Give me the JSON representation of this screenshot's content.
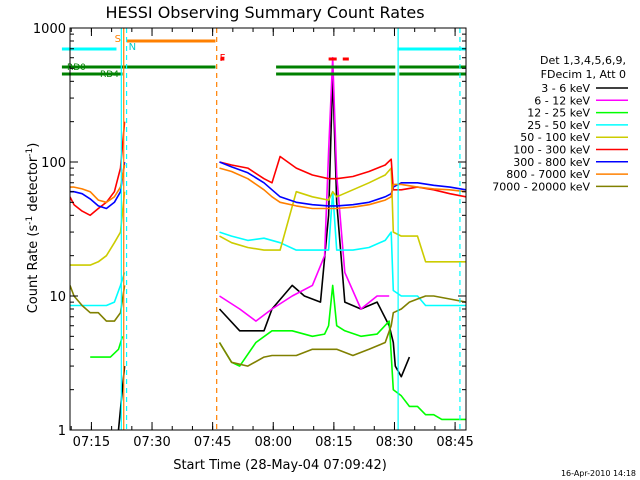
{
  "chart_data": {
    "type": "line",
    "title": "HESSI Observing Summary Count Rates",
    "xlabel": "Start Time (28-May-04 07:09:42)",
    "ylabel_main": "Count Rate (s",
    "ylabel_sup1": "-1",
    "ylabel_mid": " detector",
    "ylabel_sup2": "-1",
    "ylabel_end": ")",
    "yscale": "log",
    "ylim": [
      1,
      1000
    ],
    "xlim_minutes": [
      0,
      98
    ],
    "x_ticks": [
      {
        "label": "07:15",
        "m": 5.3
      },
      {
        "label": "07:30",
        "m": 20.3
      },
      {
        "label": "07:45",
        "m": 35.3
      },
      {
        "label": "08:00",
        "m": 50.3
      },
      {
        "label": "08:15",
        "m": 65.3
      },
      {
        "label": "08:30",
        "m": 80.3
      },
      {
        "label": "08:45",
        "m": 95.3
      }
    ],
    "y_ticks": [
      {
        "label": "1",
        "v": 1
      },
      {
        "label": "10",
        "v": 10
      },
      {
        "label": "100",
        "v": 100
      },
      {
        "label": "1000",
        "v": 1000
      }
    ],
    "legend": {
      "header1": "Det 1,3,4,5,6,9,",
      "header2": "FDecim 1, Att 0",
      "placement": "right"
    },
    "series": [
      {
        "name": "3 - 6 keV",
        "color": "#000000",
        "x": [
          0,
          8,
          12,
          13.5,
          14,
          36,
          37,
          42,
          48,
          50,
          55,
          58,
          62,
          64,
          65,
          66,
          68,
          72,
          76,
          79,
          80,
          80.5,
          82,
          84,
          86,
          98
        ],
        "y": [
          null,
          null,
          1.0,
          3,
          null,
          null,
          8,
          5.5,
          5.5,
          8,
          12,
          10,
          9,
          40,
          450,
          50,
          9,
          8,
          9,
          6,
          4.5,
          3,
          2.5,
          3.5,
          null,
          null
        ]
      },
      {
        "name": "6 - 12 keV",
        "color": "#ff00ff",
        "x": [
          0,
          13,
          14,
          36,
          37,
          42,
          46,
          50,
          55,
          60,
          63,
          64,
          65,
          66,
          68,
          72,
          76,
          79,
          80,
          98
        ],
        "y": [
          null,
          null,
          null,
          null,
          10,
          8,
          6.5,
          8,
          10,
          12,
          20,
          120,
          600,
          80,
          15,
          8,
          10,
          10,
          null,
          null
        ]
      },
      {
        "name": "12 - 25 keV",
        "color": "#00ff00",
        "x": [
          0,
          4,
          5,
          8,
          10,
          12,
          13,
          14,
          36,
          37,
          40,
          42,
          46,
          50,
          55,
          60,
          63,
          64,
          65,
          66,
          68,
          72,
          76,
          79,
          80,
          82,
          84,
          86,
          88,
          90,
          92,
          94,
          96,
          98
        ],
        "y": [
          null,
          null,
          3.5,
          3.5,
          3.5,
          4,
          5,
          null,
          null,
          4.5,
          3.2,
          3.0,
          4.5,
          5.5,
          5.5,
          5.0,
          5.2,
          6,
          12,
          6,
          5.5,
          5.0,
          5.2,
          6.5,
          2.0,
          1.8,
          1.5,
          1.5,
          1.3,
          1.3,
          1.2,
          1.2,
          1.2,
          1.2
        ]
      },
      {
        "name": "25 - 50 keV",
        "color": "#00ffff",
        "x": [
          0,
          1,
          3,
          6,
          9,
          11,
          12.5,
          13.5,
          14,
          36,
          37,
          40,
          44,
          48,
          52,
          56,
          60,
          64,
          65,
          66,
          70,
          74,
          78,
          79.5,
          80,
          82,
          86,
          88,
          92,
          95,
          98
        ],
        "y": [
          8.5,
          8.5,
          8.5,
          8.5,
          8.5,
          9,
          12,
          15,
          null,
          null,
          30,
          28,
          26,
          27,
          25,
          22,
          22,
          22,
          60,
          22,
          22,
          23,
          26,
          30,
          11,
          10,
          10,
          8.5,
          8.5,
          8.5,
          8.5
        ]
      },
      {
        "name": "50 - 100 keV",
        "color": "#cccc00",
        "x": [
          0,
          1,
          3,
          5,
          7,
          9,
          11,
          12.5,
          13.5,
          14,
          36,
          37,
          40,
          44,
          48,
          52,
          56,
          60,
          64,
          65,
          66,
          70,
          74,
          78,
          79.5,
          80,
          82,
          86,
          88,
          92,
          96,
          98
        ],
        "y": [
          17,
          17,
          17,
          17,
          18,
          20,
          25,
          30,
          60,
          null,
          null,
          28,
          25,
          23,
          22,
          22,
          60,
          55,
          52,
          60,
          55,
          62,
          70,
          80,
          90,
          30,
          28,
          28,
          18,
          18,
          18,
          18
        ]
      },
      {
        "name": "100 - 300 keV",
        "color": "#ff0000",
        "x": [
          0,
          1,
          3,
          5,
          7,
          9,
          11,
          12.5,
          13.5,
          14,
          36,
          37,
          40,
          44,
          48,
          50,
          52,
          56,
          60,
          64,
          66,
          70,
          74,
          78,
          79.5,
          80,
          82,
          86,
          90,
          94,
          98
        ],
        "y": [
          55,
          48,
          43,
          40,
          45,
          50,
          60,
          90,
          200,
          null,
          null,
          100,
          95,
          90,
          75,
          70,
          110,
          90,
          80,
          75,
          75,
          78,
          85,
          95,
          105,
          62,
          62,
          65,
          62,
          58,
          55
        ]
      },
      {
        "name": "300 - 800 keV",
        "color": "#0000ff",
        "x": [
          0,
          1,
          3,
          5,
          7,
          9,
          11,
          12.5,
          13.5,
          14,
          36,
          37,
          40,
          44,
          48,
          50,
          52,
          56,
          60,
          64,
          66,
          70,
          74,
          78,
          79.5,
          80,
          82,
          86,
          90,
          94,
          98
        ],
        "y": [
          60,
          60,
          58,
          53,
          47,
          45,
          50,
          60,
          100,
          null,
          null,
          100,
          92,
          83,
          70,
          62,
          55,
          50,
          48,
          47,
          47,
          48,
          50,
          55,
          58,
          65,
          70,
          70,
          67,
          65,
          62
        ]
      },
      {
        "name": "800 - 7000 keV",
        "color": "#ff8000",
        "x": [
          0,
          1,
          3,
          5,
          7,
          9,
          11,
          12.5,
          13.5,
          14,
          36,
          37,
          40,
          44,
          48,
          50,
          52,
          56,
          60,
          64,
          66,
          70,
          74,
          78,
          79.5,
          80,
          82,
          86,
          90,
          94,
          98
        ],
        "y": [
          65,
          65,
          63,
          60,
          52,
          50,
          55,
          65,
          95,
          null,
          null,
          90,
          85,
          75,
          62,
          55,
          50,
          47,
          45,
          45,
          45,
          46,
          48,
          52,
          55,
          68,
          68,
          65,
          63,
          62,
          60
        ]
      },
      {
        "name": "7000 - 20000 keV",
        "color": "#808000",
        "x": [
          0,
          1,
          3,
          5,
          7,
          9,
          11,
          12.5,
          13.5,
          14,
          36,
          37,
          40,
          44,
          48,
          50,
          52,
          56,
          60,
          64,
          66,
          70,
          74,
          78,
          79.5,
          80,
          82,
          84,
          86,
          88,
          90,
          94,
          98
        ],
        "y": [
          12,
          10,
          8.5,
          7.5,
          7.5,
          6.5,
          6.5,
          7.5,
          12,
          null,
          null,
          4.5,
          3.2,
          3.0,
          3.5,
          3.6,
          3.6,
          3.6,
          4.0,
          4.0,
          4.0,
          3.6,
          4.0,
          4.5,
          6.0,
          7.5,
          8,
          9,
          9.5,
          10,
          10,
          9.5,
          9
        ]
      }
    ],
    "annotations": {
      "rd0_label": "RD0",
      "rd4_label": "RD4",
      "s_label": "S",
      "n_label": "N",
      "f_label": "F",
      "rd0_bars": [
        [
          -2,
          36
        ],
        [
          51,
          80.5
        ],
        [
          81.5,
          98
        ]
      ],
      "rd4_bars": [
        [
          -2,
          13
        ],
        [
          51,
          80.5
        ],
        [
          81.5,
          98
        ]
      ],
      "s_bar": [
        14,
        36
      ],
      "cyan_top_bars": [
        [
          -2,
          11.5
        ],
        [
          81,
          98
        ]
      ],
      "f_ticks": [
        [
          37.2,
          38.2
        ],
        [
          64,
          66
        ],
        [
          67.5,
          69
        ]
      ],
      "cyan_vlines": [
        12.7,
        81.2
      ],
      "cyan_dashed_vlines": [
        14.0,
        96.5
      ],
      "orange_vlines": [
        13.3
      ],
      "orange_dashed_vlines": [
        36.3
      ]
    },
    "footer_date": "16-Apr-2010 14:18"
  }
}
